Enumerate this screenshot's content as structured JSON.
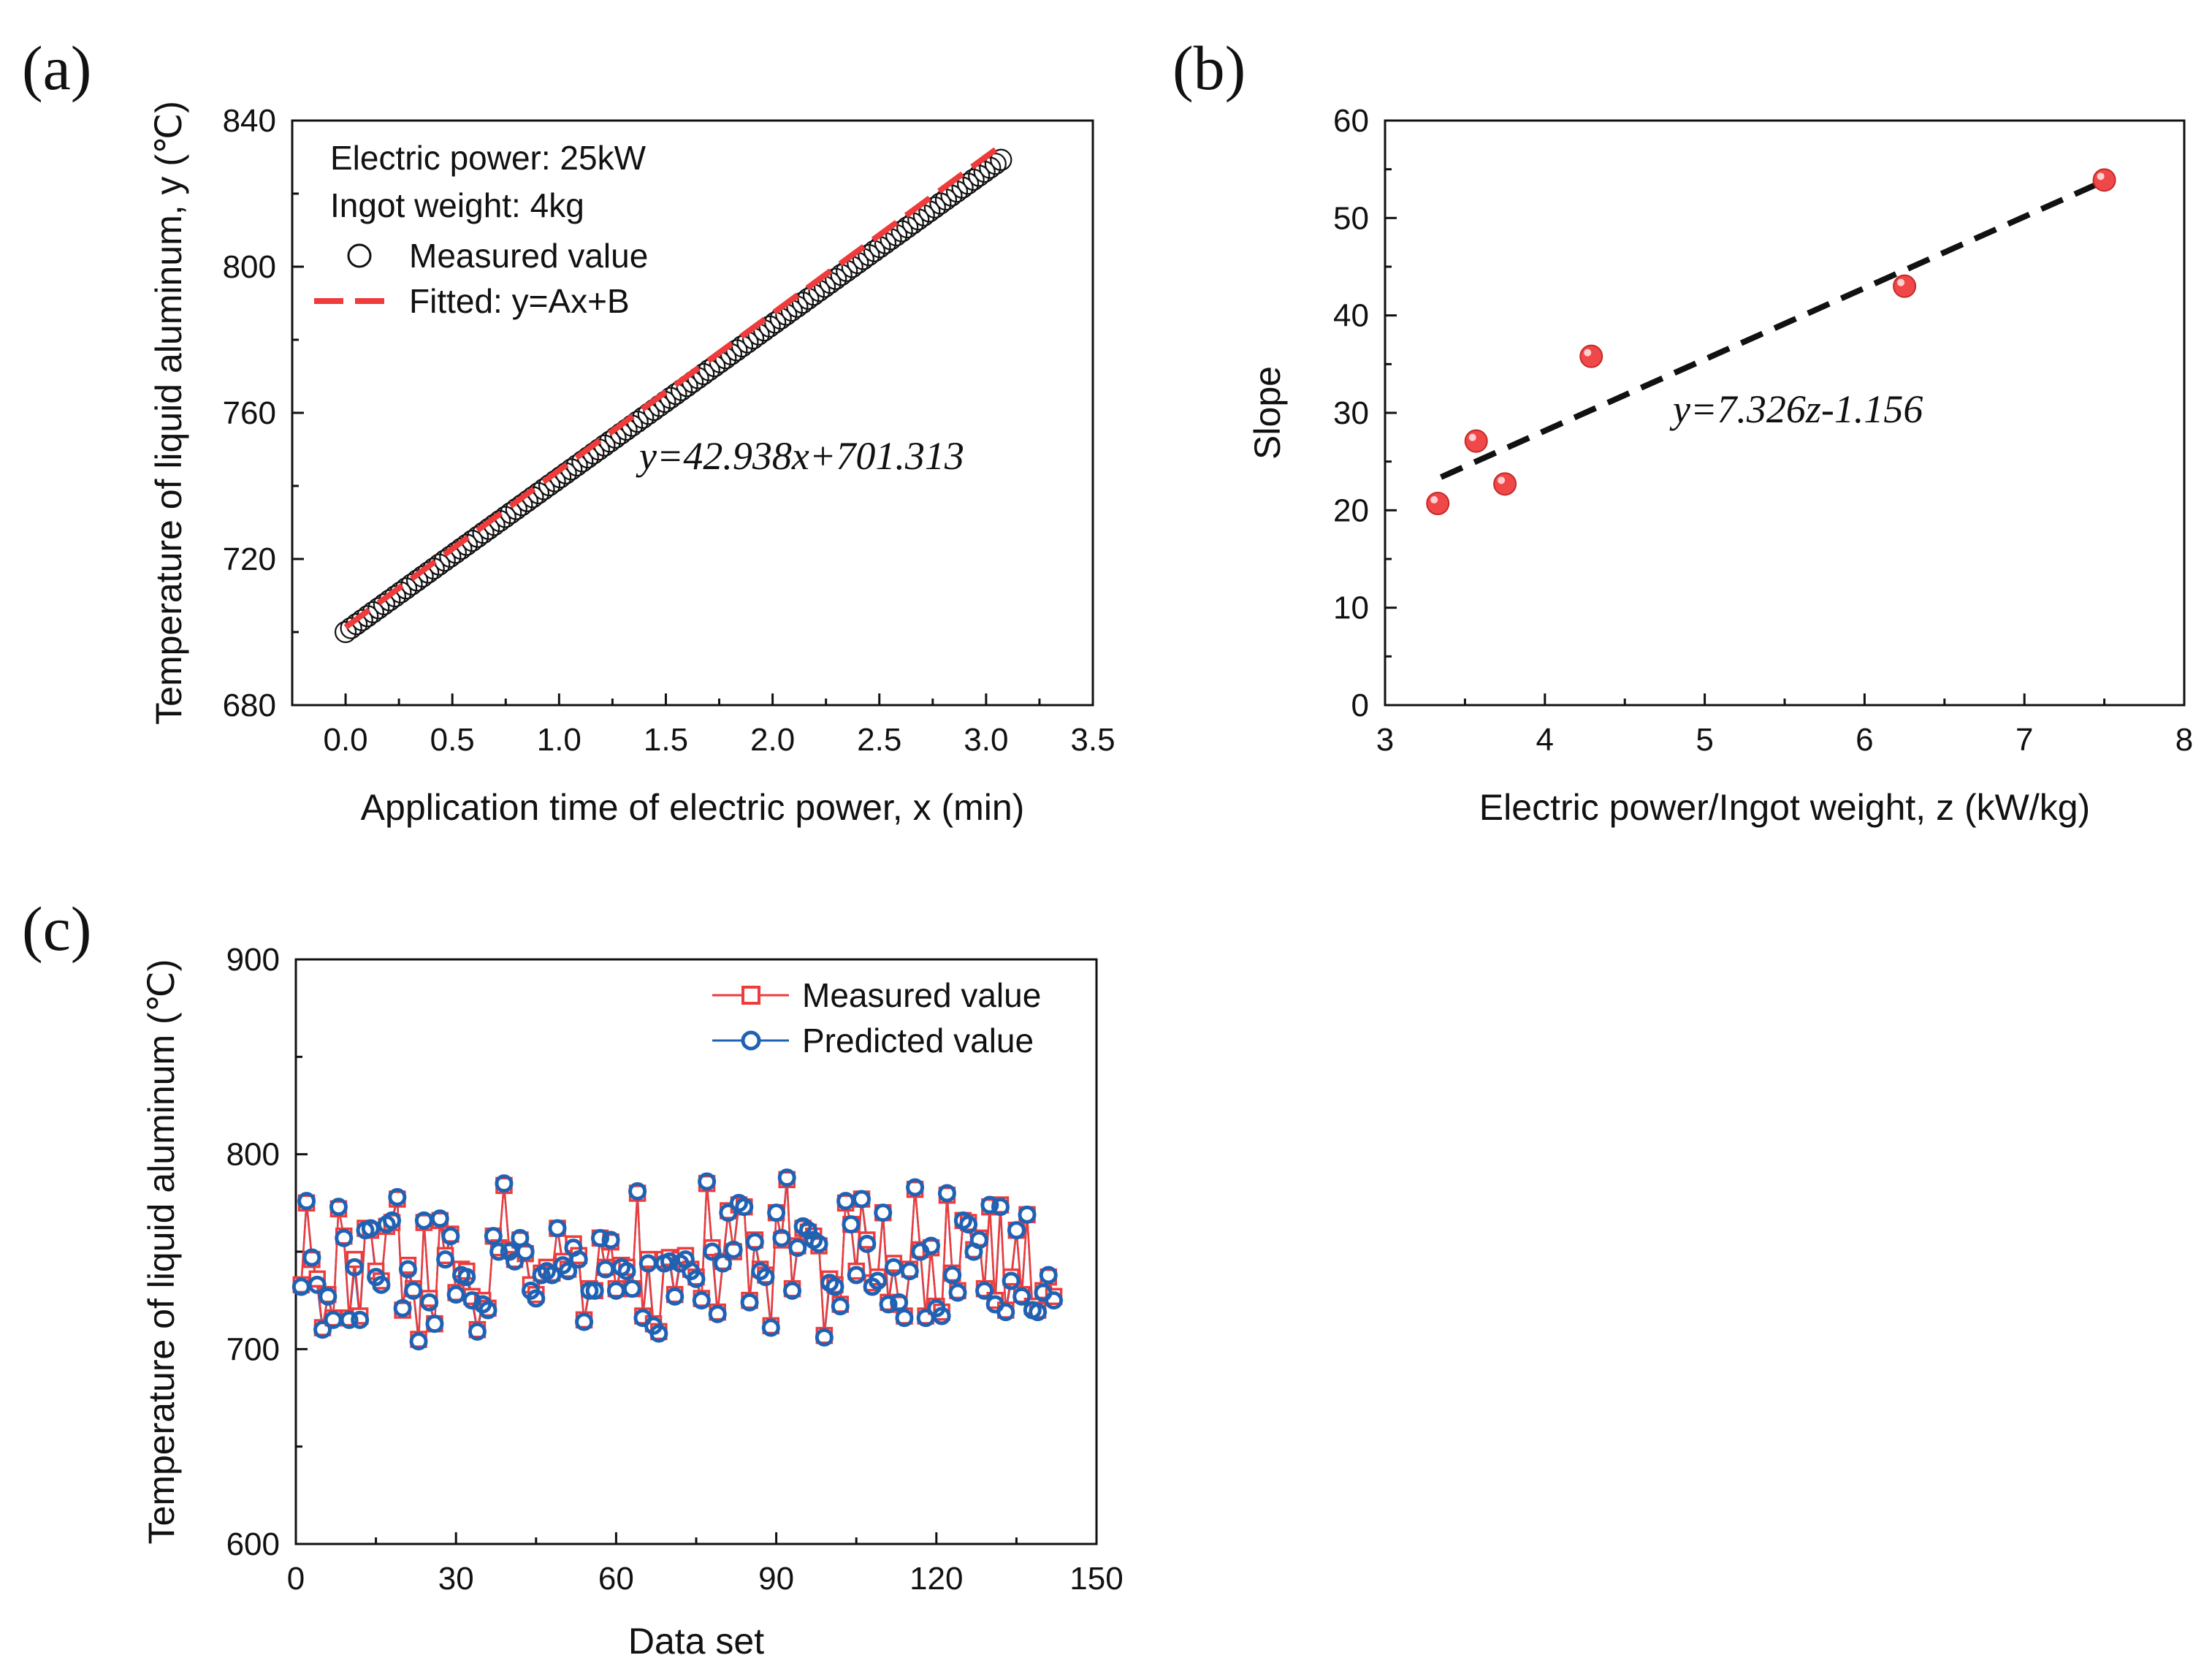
{
  "figure": {
    "panel_labels": [
      "(a)",
      "(b)",
      "(c)"
    ],
    "colors": {
      "measured_red": "#ee3b3b",
      "predicted_blue": "#1f62b4",
      "fit_black": "#111111",
      "scatter_red": "#f04848"
    }
  },
  "chart_data": [
    {
      "type": "scatter",
      "panel": "(a)",
      "xlabel": "Application time of electric power, x (min)",
      "ylabel": "Temperature of liquid aluminum, y (℃)",
      "xlim": [
        -0.25,
        3.5
      ],
      "ylim": [
        680,
        840
      ],
      "xticks": [
        "0.0",
        "0.5",
        "1.0",
        "1.5",
        "2.0",
        "2.5",
        "3.0",
        "3.5"
      ],
      "yticks": [
        "680",
        "720",
        "760",
        "800",
        "840"
      ],
      "annotations": [
        "Electric power: 25kW",
        "Ingot weight: 4kg"
      ],
      "equation": "y=42.938x+701.313",
      "legend": {
        "position": "top-left",
        "entries": [
          "Measured value",
          "Fitted: y=Ax+B"
        ]
      },
      "series": [
        {
          "name": "Measured value",
          "style": "open-circle",
          "x_range": [
            0.0,
            3.07
          ],
          "n_points": 120,
          "slope": 42.1,
          "intercept": 700.0
        },
        {
          "name": "Fitted: y=Ax+B",
          "style": "dashed-line",
          "x": [
            0.0,
            3.05
          ],
          "y": [
            701.313,
            832.274
          ]
        }
      ]
    },
    {
      "type": "scatter",
      "panel": "(b)",
      "xlabel": "Electric power/Ingot weight, z (kW/kg)",
      "ylabel": "Slope",
      "xlim": [
        3,
        8
      ],
      "ylim": [
        0,
        60
      ],
      "xticks": [
        "3",
        "4",
        "5",
        "6",
        "7",
        "8"
      ],
      "yticks": [
        "0",
        "10",
        "20",
        "30",
        "40",
        "50",
        "60"
      ],
      "equation": "y=7.326z-1.156",
      "series": [
        {
          "name": "points",
          "x": [
            3.33,
            3.57,
            3.75,
            4.29,
            6.25,
            7.5
          ],
          "y": [
            20.7,
            27.1,
            22.7,
            35.8,
            43.0,
            53.9
          ]
        },
        {
          "name": "fit",
          "style": "dashed-line",
          "x": [
            3.35,
            7.5
          ],
          "y": [
            23.4,
            53.8
          ]
        }
      ]
    },
    {
      "type": "line",
      "panel": "(c)",
      "xlabel": "Data set",
      "ylabel": "Temperature of liquid aluminum (℃)",
      "xlim": [
        0,
        150
      ],
      "ylim": [
        600,
        900
      ],
      "xticks": [
        "0",
        "30",
        "60",
        "90",
        "120",
        "150"
      ],
      "yticks": [
        "600",
        "700",
        "800",
        "900"
      ],
      "legend": {
        "position": "top-right",
        "entries": [
          "Measured value",
          "Predicted value"
        ]
      },
      "x_start": 1,
      "series": [
        {
          "name": "Measured value",
          "marker": "open-square",
          "values": [
            733,
            775,
            746,
            736,
            711,
            728,
            716,
            772,
            758,
            716,
            746,
            717,
            762,
            761,
            740,
            735,
            763,
            765,
            777,
            720,
            743,
            731,
            705,
            765,
            726,
            713,
            766,
            748,
            759,
            729,
            741,
            740,
            727,
            710,
            725,
            721,
            758,
            752,
            784,
            751,
            746,
            756,
            749,
            733,
            728,
            739,
            742,
            739,
            762,
            745,
            741,
            754,
            748,
            715,
            731,
            730,
            757,
            742,
            755,
            731,
            743,
            742,
            731,
            780,
            717,
            746,
            713,
            709,
            746,
            747,
            728,
            746,
            748,
            741,
            737,
            726,
            785,
            752,
            719,
            745,
            771,
            750,
            774,
            773,
            725,
            756,
            741,
            738,
            712,
            770,
            756,
            787,
            731,
            753,
            762,
            760,
            758,
            753,
            707,
            736,
            733,
            723,
            775,
            764,
            740,
            777,
            756,
            734,
            737,
            770,
            724,
            744,
            723,
            717,
            741,
            782,
            751,
            717,
            752,
            722,
            719,
            779,
            739,
            730,
            766,
            765,
            751,
            757,
            731,
            773,
            725,
            774,
            720,
            737,
            761,
            728,
            769,
            722,
            720,
            730,
            737,
            727
          ],
          "first_x": 1
        },
        {
          "name": "Predicted value",
          "marker": "open-circle",
          "values": [
            732,
            776,
            747,
            733,
            710,
            727,
            715,
            773,
            757,
            715,
            742,
            715,
            761,
            762,
            737,
            733,
            764,
            766,
            778,
            721,
            741,
            730,
            704,
            766,
            724,
            713,
            767,
            746,
            758,
            728,
            738,
            737,
            725,
            709,
            723,
            720,
            758,
            750,
            785,
            750,
            745,
            757,
            750,
            730,
            726,
            738,
            740,
            738,
            762,
            743,
            740,
            752,
            746,
            714,
            730,
            730,
            757,
            741,
            756,
            730,
            742,
            740,
            731,
            781,
            716,
            744,
            712,
            708,
            744,
            745,
            727,
            744,
            746,
            740,
            736,
            725,
            786,
            750,
            718,
            744,
            770,
            751,
            775,
            773,
            724,
            755,
            740,
            737,
            711,
            770,
            757,
            788,
            730,
            752,
            763,
            761,
            756,
            754,
            706,
            734,
            732,
            722,
            776,
            764,
            738,
            777,
            754,
            732,
            735,
            770,
            723,
            742,
            724,
            716,
            740,
            783,
            750,
            716,
            753,
            721,
            717,
            780,
            738,
            729,
            766,
            764,
            750,
            756,
            730,
            774,
            723,
            773,
            719,
            735,
            761,
            727,
            769,
            720,
            719,
            729,
            738,
            725
          ],
          "first_x": 1
        }
      ]
    }
  ]
}
